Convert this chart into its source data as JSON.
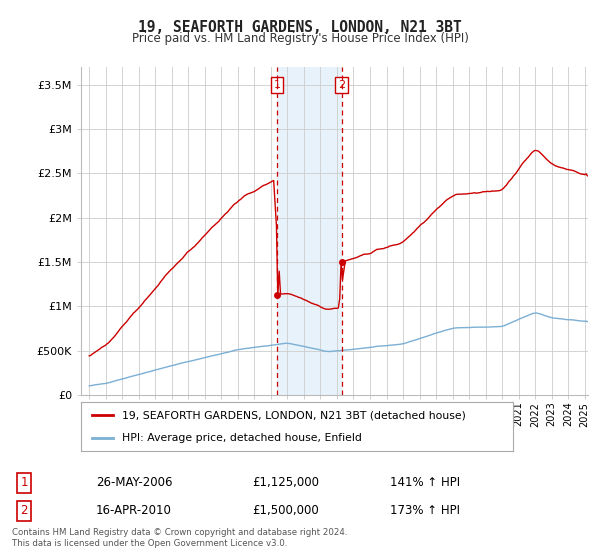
{
  "title": "19, SEAFORTH GARDENS, LONDON, N21 3BT",
  "subtitle": "Price paid vs. HM Land Registry's House Price Index (HPI)",
  "ylim": [
    0,
    3700000
  ],
  "yticks": [
    0,
    500000,
    1000000,
    1500000,
    2000000,
    2500000,
    3000000,
    3500000
  ],
  "ytick_labels": [
    "£0",
    "£500K",
    "£1M",
    "£1.5M",
    "£2M",
    "£2.5M",
    "£3M",
    "£3.5M"
  ],
  "xlim_start": 1995.0,
  "xlim_end": 2025.2,
  "background_color": "#ffffff",
  "grid_color": "#cccccc",
  "hpi_color": "#7bafd4",
  "price_color": "#cc0000",
  "sale1_x": 2006.38,
  "sale1_y": 1125000,
  "sale2_x": 2010.29,
  "sale2_y": 1500000,
  "shade_color": "#d8eaf7",
  "shade_alpha": 0.6,
  "legend_line1": "19, SEAFORTH GARDENS, LONDON, N21 3BT (detached house)",
  "legend_line2": "HPI: Average price, detached house, Enfield",
  "ann1_date": "26-MAY-2006",
  "ann1_price": "£1,125,000",
  "ann1_hpi": "141% ↑ HPI",
  "ann2_date": "16-APR-2010",
  "ann2_price": "£1,500,000",
  "ann2_hpi": "173% ↑ HPI",
  "footer": "Contains HM Land Registry data © Crown copyright and database right 2024.\nThis data is licensed under the Open Government Licence v3.0."
}
